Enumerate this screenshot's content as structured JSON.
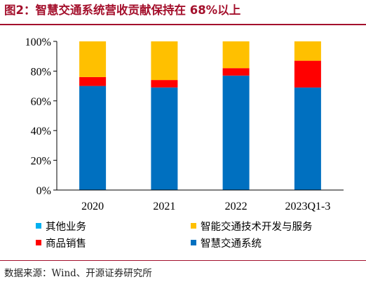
{
  "title": "图2：智慧交通系统营收贡献保持在 68%以上",
  "source": "数据来源：Wind、开源证券研究所",
  "chart_data": {
    "type": "bar",
    "stacked": true,
    "categories": [
      "2020",
      "2021",
      "2022",
      "2023Q1-3"
    ],
    "series": [
      {
        "name": "智慧交通系统",
        "color": "#0070c0",
        "values": [
          70,
          69,
          77,
          69
        ]
      },
      {
        "name": "其他业务",
        "color": "#00b0f0",
        "values": [
          0,
          0,
          0,
          0
        ]
      },
      {
        "name": "商品销售",
        "color": "#ff0000",
        "values": [
          6,
          5,
          5,
          18
        ]
      },
      {
        "name": "智能交通技术开发与服务",
        "color": "#ffc000",
        "values": [
          24,
          26,
          18,
          13
        ]
      }
    ],
    "yticks": [
      "0%",
      "20%",
      "40%",
      "60%",
      "80%",
      "100%"
    ],
    "ylim": [
      0,
      100
    ],
    "legend": [
      {
        "name": "其他业务",
        "color": "#00b0f0"
      },
      {
        "name": "智能交通技术开发与服务",
        "color": "#ffc000"
      },
      {
        "name": "商品销售",
        "color": "#ff0000"
      },
      {
        "name": "智慧交通系统",
        "color": "#0070c0"
      }
    ],
    "legend_position": "bottom",
    "grid": false
  }
}
